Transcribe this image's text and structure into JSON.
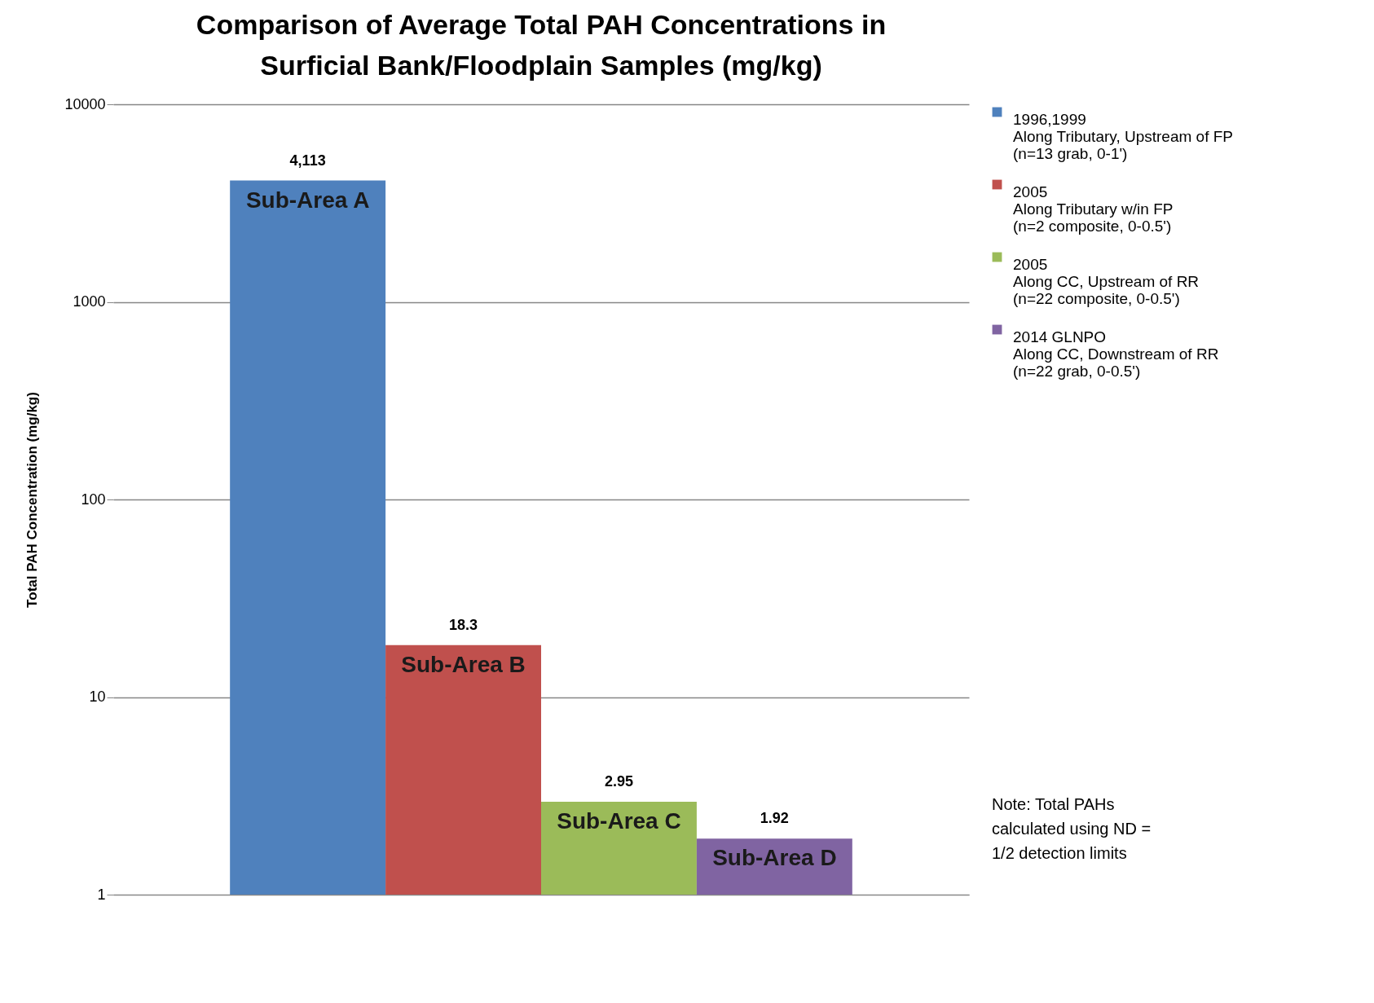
{
  "chart_data": {
    "type": "bar",
    "title": "Comparison of Average Total PAH Concentrations in\nSurficial Bank/Floodplain Samples (mg/kg)",
    "ylabel": "Total PAH Concentration (mg/kg)",
    "categories": [
      "Sub-Area A",
      "Sub-Area B",
      "Sub-Area C",
      "Sub-Area D"
    ],
    "series": [
      {
        "name": "1996,1999\nAlong Tributary, Upstream of FP\n(n=13 grab, 0-1')",
        "color": "#4f81bd",
        "values": [
          4113,
          null,
          null,
          null
        ],
        "value_labels": [
          "4,113",
          null,
          null,
          null
        ]
      },
      {
        "name": "2005\nAlong Tributary w/in FP\n(n=2 composite, 0-0.5')",
        "color": "#c0504d",
        "values": [
          null,
          18.3,
          null,
          null
        ],
        "value_labels": [
          null,
          "18.3",
          null,
          null
        ]
      },
      {
        "name": "2005\nAlong CC, Upstream of RR\n(n=22 composite, 0-0.5')",
        "color": "#9bbb59",
        "values": [
          null,
          null,
          2.95,
          null
        ],
        "value_labels": [
          null,
          null,
          "2.95",
          null
        ]
      },
      {
        "name": "2014 GLNPO\nAlong CC, Downstream of RR\n(n=22 grab, 0-0.5')",
        "color": "#8064a2",
        "values": [
          null,
          null,
          null,
          1.92
        ],
        "value_labels": [
          null,
          null,
          null,
          "1.92"
        ]
      }
    ],
    "annotations": [
      "Note: Total PAHs\ncalculated using ND =\n1/2 detection limits"
    ],
    "log": true,
    "ylim": [
      1,
      10000
    ],
    "yticks": [
      1,
      10,
      100,
      1000,
      10000
    ],
    "grid": "y",
    "legend": "right",
    "tick_labels": "y"
  }
}
